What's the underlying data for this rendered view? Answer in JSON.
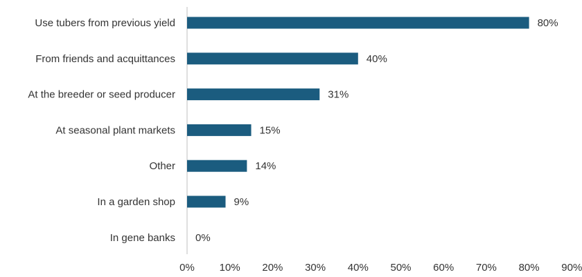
{
  "chart_data": {
    "type": "bar",
    "orientation": "horizontal",
    "categories": [
      "Use tubers from previous yield",
      "From friends and acquittances",
      "At the breeder or seed producer",
      "At seasonal plant markets",
      "Other",
      "In a garden shop",
      "In gene banks"
    ],
    "values": [
      80,
      40,
      31,
      15,
      14,
      9,
      0
    ],
    "value_labels": [
      "80%",
      "40%",
      "31%",
      "15%",
      "14%",
      "9%",
      "0%"
    ],
    "x_ticks": [
      "0%",
      "10%",
      "20%",
      "30%",
      "40%",
      "50%",
      "60%",
      "70%",
      "80%",
      "90%"
    ],
    "xlim": [
      0,
      90
    ],
    "unit": "%",
    "title": "",
    "xlabel": "",
    "ylabel": "",
    "grid": false,
    "legend": "none",
    "colors": {
      "bar": "#1b5c7f",
      "text": "#333333",
      "axis": "#bfbfbf"
    }
  }
}
